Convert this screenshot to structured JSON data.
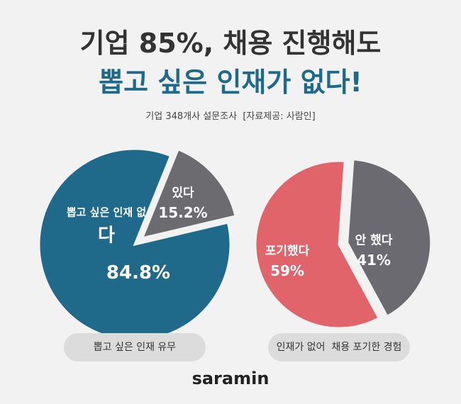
{
  "header": {
    "title_line1": "기업 85%, 채용 진행해도",
    "title_line2": "뽑고 싶은 인재가 없다!",
    "subtitle": "기업 348개사 설문조사  [자료제공: 사람인]"
  },
  "chart_data": [
    {
      "type": "pie",
      "caption": "뽑고 싶은 인재 유무",
      "categories": [
        "있다",
        "뽑고 싶은 인재 없다"
      ],
      "values": [
        15.2,
        84.8
      ],
      "value_labels": [
        "15.2%",
        "84.8%"
      ],
      "colors": [
        "#6b6b70",
        "#1f6a8a"
      ]
    },
    {
      "type": "pie",
      "caption": "인재가 없어  채용 포기한 경험",
      "categories": [
        "안 했다",
        "포기했다"
      ],
      "values": [
        41,
        59
      ],
      "value_labels": [
        "41%",
        "59%"
      ],
      "colors": [
        "#6b6a70",
        "#e0646a"
      ]
    }
  ],
  "footer": {
    "logo": "saramin"
  }
}
